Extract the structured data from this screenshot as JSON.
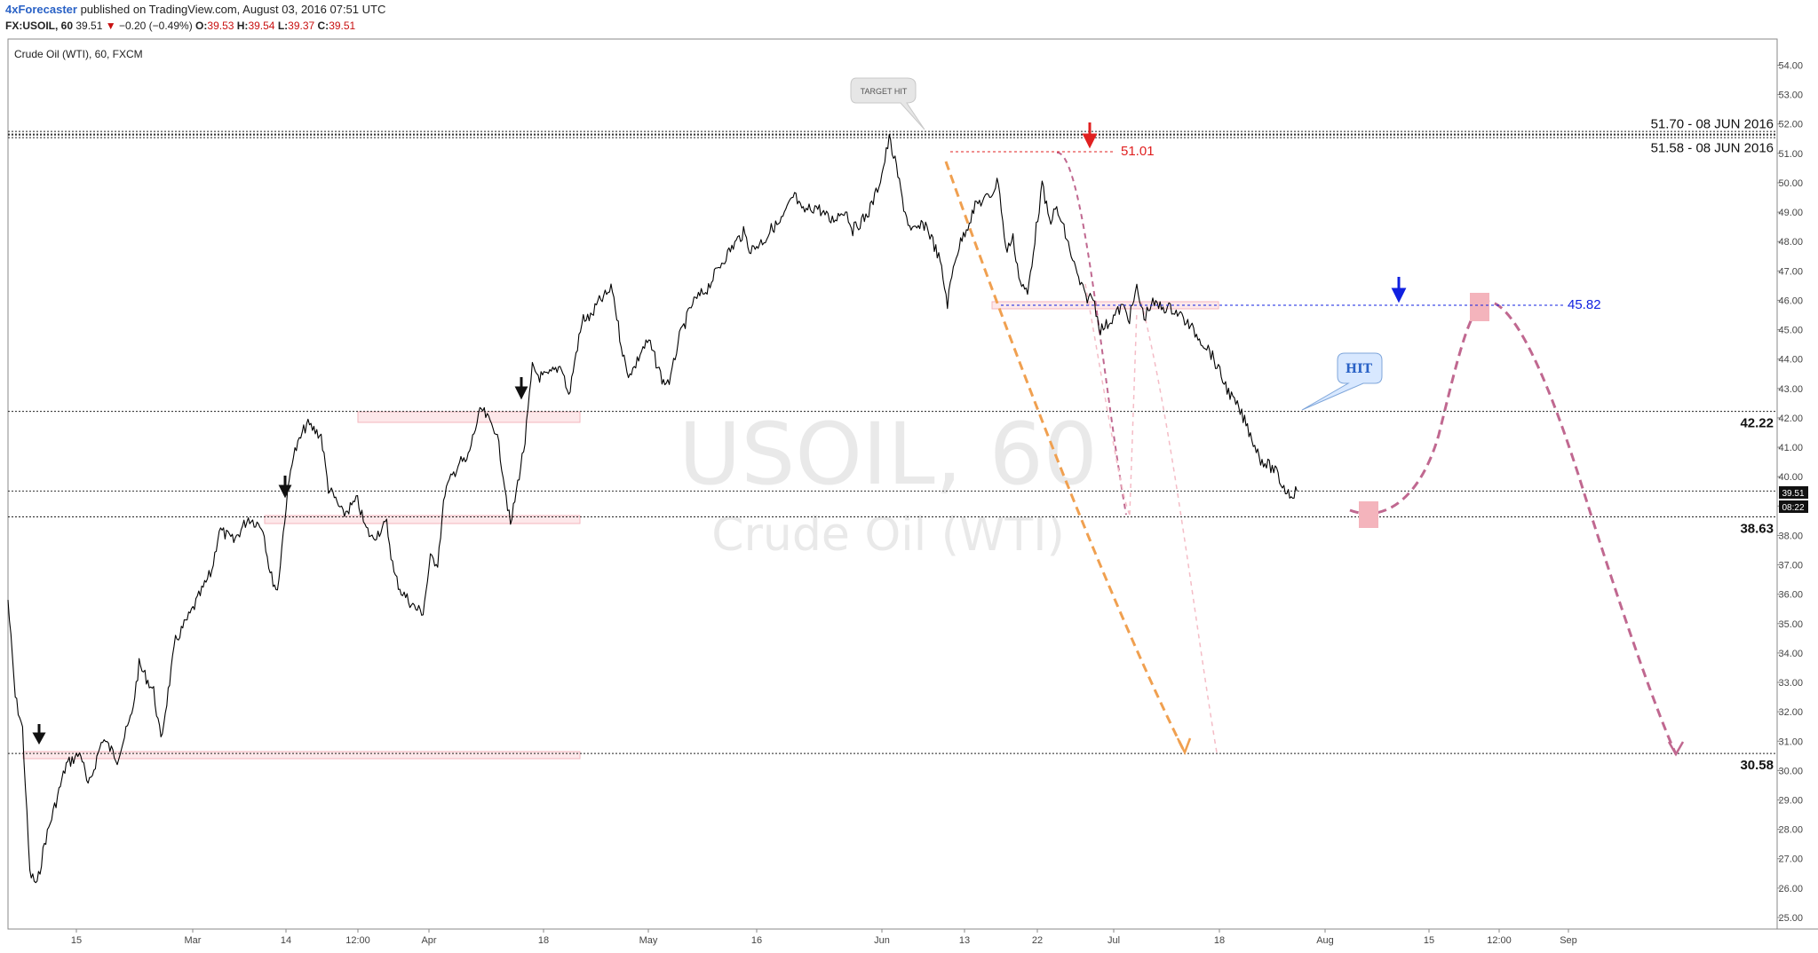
{
  "header": {
    "author": "4xForecaster",
    "published": "published on TradingView.com, August 03, 2016 07:51 UTC"
  },
  "symbol_line": {
    "symbol": "FX:USOIL, 60",
    "last": "39.51",
    "arrow": "▼",
    "change": "−0.20 (−0.49%)",
    "o_label": "O:",
    "o": "39.53",
    "h_label": "H:",
    "h": "39.54",
    "l_label": "L:",
    "l": "39.37",
    "c_label": "C:",
    "c": "39.51"
  },
  "chart_title": "Crude Oil (WTI), 60, FXCM",
  "watermark": {
    "line1": "USOIL, 60",
    "line2": "Crude Oil (WTI)"
  },
  "price_tag": {
    "price": "39.51",
    "time": "08:22"
  },
  "colors": {
    "price": "#000000",
    "orange": "#f0a050",
    "magenta": "#c06890",
    "pink": "#f0b0b8",
    "red": "#e02020",
    "blue": "#1020e0",
    "hit_bubble": "#d8e8ff",
    "target_bubble": "#e6e6e6"
  },
  "chart_data": {
    "type": "line",
    "ylim": [
      24.8,
      54.7
    ],
    "yticks": [
      "25.00",
      "26.00",
      "27.00",
      "28.00",
      "29.00",
      "30.00",
      "31.00",
      "32.00",
      "33.00",
      "34.00",
      "35.00",
      "36.00",
      "37.00",
      "38.00",
      "39.00",
      "40.00",
      "41.00",
      "42.00",
      "43.00",
      "44.00",
      "45.00",
      "46.00",
      "47.00",
      "48.00",
      "49.00",
      "50.00",
      "51.00",
      "52.00",
      "53.00",
      "54.00"
    ],
    "xticks": [
      "15",
      "Mar",
      "14",
      "12:00",
      "Apr",
      "18",
      "May",
      "16",
      "Jun",
      "13",
      "22",
      "Jul",
      "18",
      "Aug",
      "15",
      "12:00",
      "Sep"
    ],
    "x_start": "2016-02-08",
    "series": [
      {
        "points": [
          [
            "2016-02-08",
            35.8
          ],
          [
            "2016-02-09",
            32.5
          ],
          [
            "2016-02-10",
            31.4
          ],
          [
            "2016-02-11",
            26.5
          ],
          [
            "2016-02-12",
            26.1
          ],
          [
            "2016-02-13",
            27.5
          ],
          [
            "2016-02-15",
            29.3
          ],
          [
            "2016-02-16",
            30.2
          ],
          [
            "2016-02-18",
            30.6
          ],
          [
            "2016-02-19",
            29.4
          ],
          [
            "2016-02-21",
            31.1
          ],
          [
            "2016-02-23",
            30.4
          ],
          [
            "2016-02-25",
            31.9
          ],
          [
            "2016-02-26",
            33.6
          ],
          [
            "2016-02-28",
            32.7
          ],
          [
            "2016-02-29",
            31.0
          ],
          [
            "2016-03-02",
            34.4
          ],
          [
            "2016-03-04",
            35.3
          ],
          [
            "2016-03-07",
            36.8
          ],
          [
            "2016-03-08",
            38.2
          ],
          [
            "2016-03-10",
            37.8
          ],
          [
            "2016-03-12",
            38.6
          ],
          [
            "2016-03-14",
            38.3
          ],
          [
            "2016-03-15",
            36.7
          ],
          [
            "2016-03-16",
            36.1
          ],
          [
            "2016-03-17",
            38.6
          ],
          [
            "2016-03-18",
            40.6
          ],
          [
            "2016-03-19",
            41.2
          ],
          [
            "2016-03-20",
            41.8
          ],
          [
            "2016-03-22",
            41.4
          ],
          [
            "2016-03-23",
            39.6
          ],
          [
            "2016-03-24",
            39.2
          ],
          [
            "2016-03-25",
            38.7
          ],
          [
            "2016-03-27",
            39.2
          ],
          [
            "2016-03-28",
            38.3
          ],
          [
            "2016-03-29",
            37.9
          ],
          [
            "2016-03-31",
            38.4
          ],
          [
            "2016-04-01",
            36.7
          ],
          [
            "2016-04-02",
            36.1
          ],
          [
            "2016-04-04",
            35.5
          ],
          [
            "2016-04-05",
            35.4
          ],
          [
            "2016-04-06",
            37.2
          ],
          [
            "2016-04-07",
            37.1
          ],
          [
            "2016-04-08",
            39.5
          ],
          [
            "2016-04-10",
            40.5
          ],
          [
            "2016-04-11",
            40.5
          ],
          [
            "2016-04-12",
            41.5
          ],
          [
            "2016-04-13",
            42.3
          ],
          [
            "2016-04-14",
            41.9
          ],
          [
            "2016-04-15",
            41.6
          ],
          [
            "2016-04-16",
            40.1
          ],
          [
            "2016-04-17",
            38.3
          ],
          [
            "2016-04-18",
            39.8
          ],
          [
            "2016-04-19",
            41.2
          ],
          [
            "2016-04-20",
            43.7
          ],
          [
            "2016-04-21",
            43.4
          ],
          [
            "2016-04-22",
            43.4
          ],
          [
            "2016-04-24",
            43.8
          ],
          [
            "2016-04-25",
            42.7
          ],
          [
            "2016-04-26",
            44.2
          ],
          [
            "2016-04-27",
            45.4
          ],
          [
            "2016-04-28",
            45.4
          ],
          [
            "2016-04-29",
            45.9
          ],
          [
            "2016-05-01",
            46.4
          ],
          [
            "2016-05-02",
            44.8
          ],
          [
            "2016-05-03",
            43.5
          ],
          [
            "2016-05-04",
            43.7
          ],
          [
            "2016-05-05",
            44.3
          ],
          [
            "2016-05-06",
            44.6
          ],
          [
            "2016-05-08",
            43.2
          ],
          [
            "2016-05-09",
            43.3
          ],
          [
            "2016-05-10",
            44.6
          ],
          [
            "2016-05-12",
            45.9
          ],
          [
            "2016-05-14",
            46.4
          ],
          [
            "2016-05-16",
            47.3
          ],
          [
            "2016-05-18",
            48.0
          ],
          [
            "2016-05-19",
            48.3
          ],
          [
            "2016-05-20",
            47.7
          ],
          [
            "2016-05-22",
            48.1
          ],
          [
            "2016-05-23",
            48.5
          ],
          [
            "2016-05-24",
            48.6
          ],
          [
            "2016-05-26",
            49.6
          ],
          [
            "2016-05-27",
            49.0
          ],
          [
            "2016-05-29",
            49.2
          ],
          [
            "2016-05-31",
            48.7
          ],
          [
            "2016-06-01",
            48.9
          ],
          [
            "2016-06-02",
            49.1
          ],
          [
            "2016-06-03",
            48.4
          ],
          [
            "2016-06-05",
            48.9
          ],
          [
            "2016-06-06",
            49.5
          ],
          [
            "2016-06-07",
            50.3
          ],
          [
            "2016-06-08",
            51.5
          ],
          [
            "2016-06-09",
            50.5
          ],
          [
            "2016-06-10",
            49.2
          ],
          [
            "2016-06-11",
            48.3
          ],
          [
            "2016-06-13",
            48.6
          ],
          [
            "2016-06-14",
            48.0
          ],
          [
            "2016-06-15",
            47.3
          ],
          [
            "2016-06-16",
            45.9
          ],
          [
            "2016-06-17",
            47.4
          ],
          [
            "2016-06-18",
            48.1
          ],
          [
            "2016-06-20",
            49.3
          ],
          [
            "2016-06-21",
            49.4
          ],
          [
            "2016-06-22",
            49.6
          ],
          [
            "2016-06-23",
            50.1
          ],
          [
            "2016-06-24",
            47.7
          ],
          [
            "2016-06-25",
            48.1
          ],
          [
            "2016-06-26",
            46.6
          ],
          [
            "2016-06-27",
            46.2
          ],
          [
            "2016-06-28",
            48.1
          ],
          [
            "2016-06-29",
            49.9
          ],
          [
            "2016-06-30",
            48.7
          ],
          [
            "2016-07-01",
            49.1
          ],
          [
            "2016-07-02",
            48.4
          ],
          [
            "2016-07-04",
            46.7
          ],
          [
            "2016-07-05",
            46.1
          ],
          [
            "2016-07-06",
            46.1
          ],
          [
            "2016-07-07",
            45.0
          ],
          [
            "2016-07-08",
            45.2
          ],
          [
            "2016-07-10",
            45.8
          ],
          [
            "2016-07-11",
            45.4
          ],
          [
            "2016-07-12",
            46.4
          ],
          [
            "2016-07-13",
            45.4
          ],
          [
            "2016-07-14",
            45.9
          ],
          [
            "2016-07-15",
            45.8
          ],
          [
            "2016-07-17",
            45.7
          ],
          [
            "2016-07-18",
            45.5
          ],
          [
            "2016-07-19",
            45.2
          ],
          [
            "2016-07-20",
            44.9
          ],
          [
            "2016-07-21",
            44.6
          ],
          [
            "2016-07-22",
            44.3
          ],
          [
            "2016-07-24",
            43.2
          ],
          [
            "2016-07-25",
            42.7
          ],
          [
            "2016-07-26",
            42.3
          ],
          [
            "2016-07-27",
            41.8
          ],
          [
            "2016-07-28",
            41.2
          ],
          [
            "2016-07-29",
            40.6
          ],
          [
            "2016-07-31",
            40.2
          ],
          [
            "2016-08-01",
            39.7
          ],
          [
            "2016-08-02",
            39.4
          ],
          [
            "2016-08-03",
            39.51
          ]
        ]
      }
    ],
    "levels": [
      {
        "value": 51.7,
        "label": "51.70 - 08 JUN 2016",
        "style": "double"
      },
      {
        "value": 51.58,
        "label": "51.58 - 08 JUN 2016",
        "style": "double"
      },
      {
        "value": 42.22,
        "label": "42.22",
        "style": "dotted"
      },
      {
        "value": 38.63,
        "label": "38.63",
        "style": "dotted"
      },
      {
        "value": 30.58,
        "label": "30.58",
        "style": "dotted"
      },
      {
        "value": 39.51,
        "label": "",
        "style": "current"
      }
    ],
    "annotations": [
      {
        "text": "TARGET HIT",
        "kind": "callout"
      },
      {
        "text": "HIT",
        "kind": "callout"
      },
      {
        "text": "51.01",
        "kind": "red-level",
        "value": 51.01
      },
      {
        "text": "45.82",
        "kind": "blue-level",
        "value": 45.82
      }
    ]
  }
}
